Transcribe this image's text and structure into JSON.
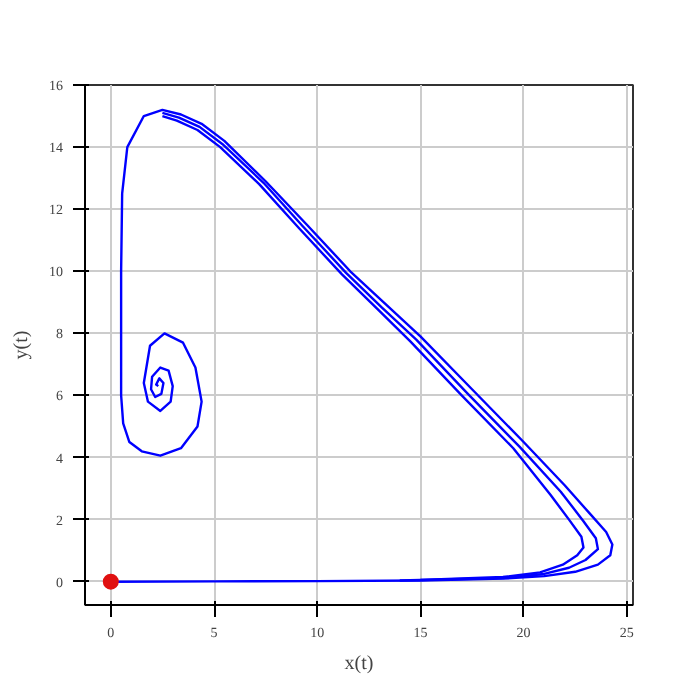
{
  "chart_data": {
    "type": "line",
    "xlabel": "x(t)",
    "ylabel": "y(t)",
    "xlim": [
      -1.25,
      25.3
    ],
    "ylim": [
      -0.75,
      16
    ],
    "xticks": [
      0,
      5,
      10,
      15,
      20,
      25
    ],
    "yticks": [
      0,
      2,
      4,
      6,
      8,
      10,
      12,
      14,
      16
    ],
    "grid": true,
    "marker": "none",
    "line_style": "solid",
    "series": [
      {
        "color": "#0000ff",
        "x": [
          0,
          5,
          10,
          15,
          19,
          21,
          22.5,
          23.6,
          24.2,
          24.3,
          24.0,
          23.2,
          22.0,
          20,
          17.5,
          15,
          13.3,
          11.6,
          9.5,
          7.5,
          5.5,
          4.4,
          3.4,
          2.5,
          1.6,
          0.8,
          0.55,
          0.5,
          0.5,
          0.5,
          0.6,
          0.9,
          1.5,
          2.4,
          3.4,
          4.2,
          4.4,
          4.1,
          3.5,
          2.6,
          1.9,
          1.6,
          1.8,
          2.4,
          2.9,
          3.0,
          2.8,
          2.4,
          2.0,
          1.95,
          2.15,
          2.45,
          2.55,
          2.35,
          2.2,
          2.3
        ],
        "values": [
          0,
          0.01,
          0.02,
          0.04,
          0.1,
          0.18,
          0.32,
          0.55,
          0.85,
          1.2,
          1.6,
          2.2,
          3.1,
          4.5,
          6.2,
          7.9,
          8.95,
          10,
          11.5,
          12.9,
          14.2,
          14.75,
          15.05,
          15.2,
          15.0,
          14.0,
          12.5,
          10,
          8,
          6,
          5.1,
          4.5,
          4.2,
          4.06,
          4.3,
          5.0,
          5.8,
          6.9,
          7.7,
          8.0,
          7.6,
          6.4,
          5.8,
          5.5,
          5.8,
          6.3,
          6.8,
          6.9,
          6.6,
          6.2,
          5.95,
          6.05,
          6.4,
          6.55,
          6.35,
          6.3
        ]
      },
      {
        "color": "#0000ff",
        "x": [
          14,
          19,
          21,
          22.2,
          23.0,
          23.6,
          23.5,
          22.9,
          21.8,
          19.8,
          17.3,
          14.8,
          13.1,
          11.4,
          9.3,
          7.4,
          5.4,
          4.3,
          3.3,
          2.5
        ],
        "values": [
          0.04,
          0.12,
          0.25,
          0.45,
          0.7,
          1.05,
          1.4,
          1.95,
          2.9,
          4.35,
          6.05,
          7.8,
          8.85,
          9.95,
          11.45,
          12.85,
          14.1,
          14.65,
          14.95,
          15.1
        ]
      },
      {
        "color": "#0000ff",
        "x": [
          15,
          19,
          20.8,
          21.9,
          22.6,
          22.9,
          22.8,
          22.2,
          21.3,
          19.5,
          17.0,
          14.5,
          12.9,
          11.2,
          9.1,
          7.2,
          5.3,
          4.2,
          3.2,
          2.5
        ],
        "values": [
          0.06,
          0.15,
          0.3,
          0.55,
          0.85,
          1.1,
          1.45,
          2.0,
          2.8,
          4.3,
          6.0,
          7.75,
          8.8,
          9.9,
          11.4,
          12.8,
          14.0,
          14.55,
          14.85,
          15.0
        ]
      },
      {
        "type": "scatter",
        "marker": "circle",
        "color": "#e01010",
        "x": [
          0
        ],
        "values": [
          0
        ]
      }
    ]
  }
}
